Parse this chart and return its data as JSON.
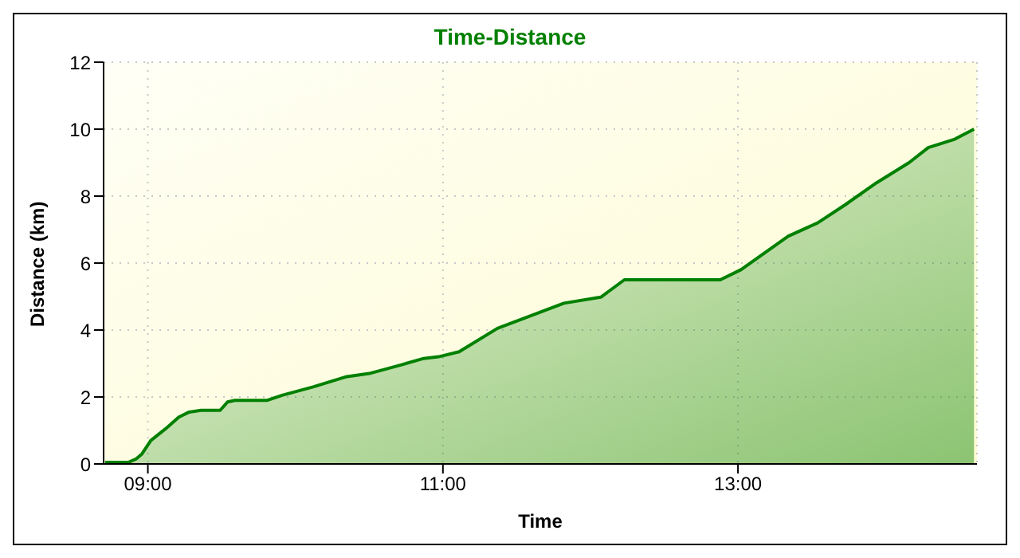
{
  "chart_data": {
    "type": "area",
    "title": "Time-Distance",
    "xlabel": "Time",
    "ylabel": "Distance (km)",
    "x": [
      8.71,
      8.87,
      8.92,
      8.96,
      9.02,
      9.12,
      9.21,
      9.28,
      9.36,
      9.49,
      9.54,
      9.59,
      9.81,
      9.91,
      10.12,
      10.34,
      10.5,
      10.71,
      10.87,
      10.97,
      11.11,
      11.37,
      11.82,
      12.07,
      12.23,
      12.88,
      13.02,
      13.34,
      13.54,
      13.73,
      13.94,
      14.16,
      14.29,
      14.47,
      14.6
    ],
    "series": [
      {
        "color": "#008000",
        "values": [
          0.05,
          0.05,
          0.15,
          0.3,
          0.7,
          1.05,
          1.4,
          1.55,
          1.6,
          1.6,
          1.85,
          1.9,
          1.9,
          2.05,
          2.3,
          2.6,
          2.7,
          2.95,
          3.15,
          3.2,
          3.35,
          4.05,
          4.8,
          4.98,
          5.5,
          5.5,
          5.8,
          6.8,
          7.2,
          7.75,
          8.4,
          9.0,
          9.45,
          9.7,
          10.0
        ]
      }
    ],
    "xlim": [
      8.7,
      14.62
    ],
    "xticks": [
      {
        "value": 9,
        "label": "09:00"
      },
      {
        "value": 11,
        "label": "11:00"
      },
      {
        "value": 13,
        "label": "13:00"
      }
    ],
    "ylim": [
      0,
      12
    ],
    "yticks": [
      0,
      2,
      4,
      6,
      8,
      10,
      12
    ],
    "grid": true
  }
}
